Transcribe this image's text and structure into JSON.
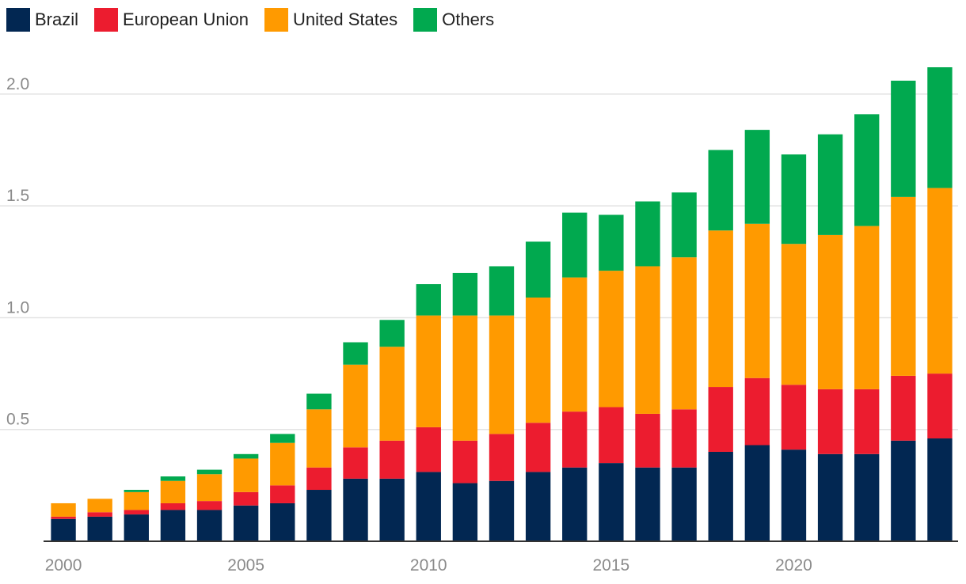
{
  "chart_data": {
    "type": "bar",
    "stacked": true,
    "title": "",
    "xlabel": "",
    "ylabel": "",
    "legend_position": "top-left",
    "grid": "horizontal",
    "categories": [
      "2000",
      "2001",
      "2002",
      "2003",
      "2004",
      "2005",
      "2006",
      "2007",
      "2008",
      "2009",
      "2010",
      "2011",
      "2012",
      "2013",
      "2014",
      "2015",
      "2016",
      "2017",
      "2018",
      "2019",
      "2020",
      "2021",
      "2022",
      "2023",
      "2024"
    ],
    "x_tick_labels": [
      "2000",
      "2005",
      "2010",
      "2015",
      "2020"
    ],
    "ylim": [
      0,
      2.12
    ],
    "y_ticks": [
      0.5,
      1.0,
      1.5,
      2.0
    ],
    "y_tick_labels": [
      "0.5",
      "1.0",
      "1.5",
      "2.0"
    ],
    "series": [
      {
        "name": "Brazil",
        "color": "#022752",
        "values": [
          0.1,
          0.11,
          0.12,
          0.14,
          0.14,
          0.16,
          0.17,
          0.23,
          0.28,
          0.28,
          0.31,
          0.26,
          0.27,
          0.31,
          0.33,
          0.35,
          0.33,
          0.33,
          0.4,
          0.43,
          0.41,
          0.39,
          0.39,
          0.45,
          0.46
        ]
      },
      {
        "name": "European Union",
        "color": "#ec1c2f",
        "values": [
          0.01,
          0.02,
          0.02,
          0.03,
          0.04,
          0.06,
          0.08,
          0.1,
          0.14,
          0.17,
          0.2,
          0.19,
          0.21,
          0.22,
          0.25,
          0.25,
          0.24,
          0.26,
          0.29,
          0.3,
          0.29,
          0.29,
          0.29,
          0.29,
          0.29
        ]
      },
      {
        "name": "United States",
        "color": "#ff9a00",
        "values": [
          0.06,
          0.06,
          0.08,
          0.1,
          0.12,
          0.15,
          0.19,
          0.26,
          0.37,
          0.42,
          0.5,
          0.56,
          0.53,
          0.56,
          0.6,
          0.61,
          0.66,
          0.68,
          0.7,
          0.69,
          0.63,
          0.69,
          0.73,
          0.8,
          0.83
        ]
      },
      {
        "name": "Others",
        "color": "#01a94f",
        "values": [
          0.0,
          0.0,
          0.01,
          0.02,
          0.02,
          0.02,
          0.04,
          0.07,
          0.1,
          0.12,
          0.14,
          0.19,
          0.22,
          0.25,
          0.29,
          0.25,
          0.29,
          0.29,
          0.36,
          0.42,
          0.4,
          0.45,
          0.5,
          0.52,
          0.54
        ]
      }
    ]
  }
}
